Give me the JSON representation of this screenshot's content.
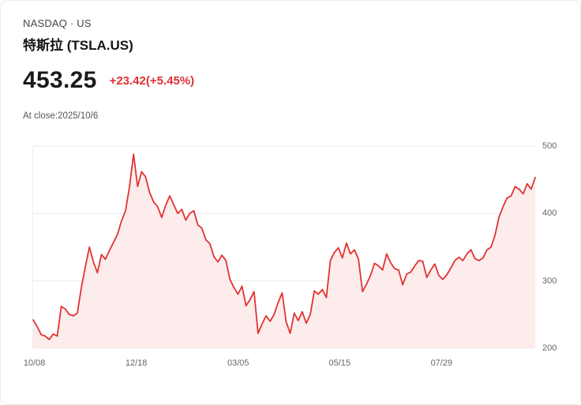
{
  "header": {
    "exchange_line": "NASDAQ · US",
    "title": "特斯拉 (TSLA.US)",
    "price": "453.25",
    "change": "+23.42(+5.45%)",
    "close_info": "At close:2025/10/6"
  },
  "colors": {
    "change_text": "#e03131",
    "line": "#e23232",
    "fill": "#fcecec",
    "grid": "#ebebeb",
    "axis_text": "#666666"
  },
  "chart_data": {
    "type": "area",
    "title": "",
    "xlabel": "",
    "ylabel": "",
    "ylim": [
      200,
      500
    ],
    "yticks": [
      500,
      400,
      300,
      200
    ],
    "grid": true,
    "legend_position": "none",
    "x_ticks": [
      {
        "label": "10/08",
        "pos": 0.004
      },
      {
        "label": "12/18",
        "pos": 0.207
      },
      {
        "label": "03/05",
        "pos": 0.41
      },
      {
        "label": "05/15",
        "pos": 0.612
      },
      {
        "label": "07/29",
        "pos": 0.815
      }
    ],
    "values": [
      242,
      232,
      220,
      218,
      213,
      221,
      218,
      262,
      258,
      250,
      248,
      252,
      290,
      321,
      350,
      328,
      312,
      339,
      332,
      345,
      357,
      369,
      389,
      404,
      440,
      488,
      440,
      462,
      454,
      431,
      417,
      410,
      394,
      412,
      426,
      413,
      400,
      406,
      390,
      400,
      404,
      383,
      378,
      361,
      355,
      336,
      328,
      338,
      330,
      302,
      290,
      280,
      292,
      263,
      272,
      284,
      222,
      236,
      248,
      240,
      250,
      268,
      282,
      239,
      222,
      252,
      241,
      254,
      237,
      250,
      285,
      280,
      287,
      275,
      330,
      342,
      349,
      334,
      356,
      340,
      346,
      332,
      284,
      295,
      308,
      326,
      322,
      316,
      340,
      327,
      318,
      316,
      294,
      310,
      313,
      322,
      330,
      329,
      305,
      316,
      325,
      308,
      302,
      309,
      319,
      330,
      335,
      330,
      340,
      346,
      333,
      330,
      334,
      346,
      350,
      368,
      395,
      410,
      423,
      426,
      440,
      436,
      429,
      444,
      436,
      453.25
    ]
  }
}
